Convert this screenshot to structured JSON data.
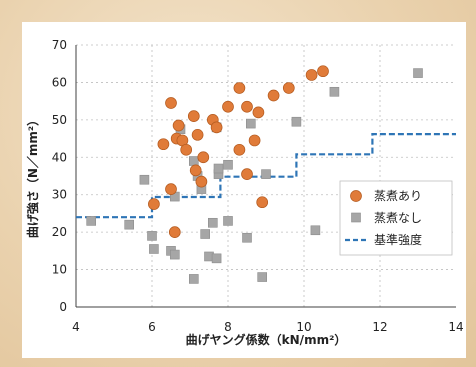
{
  "chart_data": {
    "type": "scatter",
    "xlabel": "曲げヤング係数（kN/mm²）",
    "ylabel": "曲げ強さ（N／mm²）",
    "xlim": [
      4,
      14
    ],
    "ylim": [
      0,
      70
    ],
    "x_ticks": [
      "4",
      "6",
      "8",
      "10",
      "12",
      "14"
    ],
    "y_ticks": [
      "0",
      "10",
      "20",
      "30",
      "40",
      "50",
      "60",
      "70"
    ],
    "grid": "major, dashed",
    "legend_position": "right",
    "series": [
      {
        "name": "蒸煮あり",
        "marker": "circle",
        "color": "#e07b39",
        "points": [
          [
            6.05,
            27.5
          ],
          [
            6.3,
            43.5
          ],
          [
            6.5,
            31.5
          ],
          [
            6.5,
            54.5
          ],
          [
            6.6,
            20.0
          ],
          [
            6.65,
            45.0
          ],
          [
            6.7,
            48.5
          ],
          [
            6.8,
            44.5
          ],
          [
            6.9,
            42.0
          ],
          [
            7.1,
            51.0
          ],
          [
            7.15,
            36.5
          ],
          [
            7.2,
            46.0
          ],
          [
            7.3,
            33.5
          ],
          [
            7.35,
            40.0
          ],
          [
            7.6,
            50.0
          ],
          [
            7.7,
            48.0
          ],
          [
            8.0,
            53.5
          ],
          [
            8.3,
            58.5
          ],
          [
            8.3,
            42.0
          ],
          [
            8.5,
            35.5
          ],
          [
            8.5,
            53.5
          ],
          [
            8.7,
            44.5
          ],
          [
            8.8,
            52.0
          ],
          [
            8.9,
            28.0
          ],
          [
            9.2,
            56.5
          ],
          [
            9.6,
            58.5
          ],
          [
            10.2,
            62.0
          ],
          [
            10.5,
            63.0
          ]
        ]
      },
      {
        "name": "蒸煮なし",
        "marker": "square",
        "color": "#a6a6a6",
        "points": [
          [
            4.4,
            23.0
          ],
          [
            5.4,
            22.0
          ],
          [
            5.8,
            34.0
          ],
          [
            6.0,
            19.0
          ],
          [
            6.05,
            15.5
          ],
          [
            6.5,
            15.0
          ],
          [
            6.6,
            14.0
          ],
          [
            6.6,
            29.5
          ],
          [
            6.75,
            47.5
          ],
          [
            7.1,
            7.5
          ],
          [
            7.1,
            39.0
          ],
          [
            7.2,
            35.0
          ],
          [
            7.3,
            31.5
          ],
          [
            7.4,
            19.5
          ],
          [
            7.5,
            13.5
          ],
          [
            7.6,
            22.5
          ],
          [
            7.7,
            13.0
          ],
          [
            7.7,
            48.0
          ],
          [
            7.75,
            35.5
          ],
          [
            7.75,
            37.0
          ],
          [
            8.0,
            23.0
          ],
          [
            8.0,
            38.0
          ],
          [
            8.5,
            18.5
          ],
          [
            8.6,
            49.0
          ],
          [
            8.9,
            8.0
          ],
          [
            9.0,
            35.5
          ],
          [
            9.8,
            49.5
          ],
          [
            10.3,
            20.5
          ],
          [
            10.8,
            57.5
          ],
          [
            13.0,
            62.5
          ]
        ]
      },
      {
        "name": "基準強度",
        "marker": "dashed-step-line",
        "color": "#2e75b6",
        "points": [
          [
            4.0,
            24.0
          ],
          [
            6.0,
            24.0
          ],
          [
            6.0,
            29.4
          ],
          [
            7.8,
            29.4
          ],
          [
            7.8,
            34.8
          ],
          [
            9.8,
            34.8
          ],
          [
            9.8,
            40.8
          ],
          [
            11.8,
            40.8
          ],
          [
            11.8,
            46.2
          ],
          [
            14.0,
            46.2
          ]
        ]
      }
    ]
  }
}
